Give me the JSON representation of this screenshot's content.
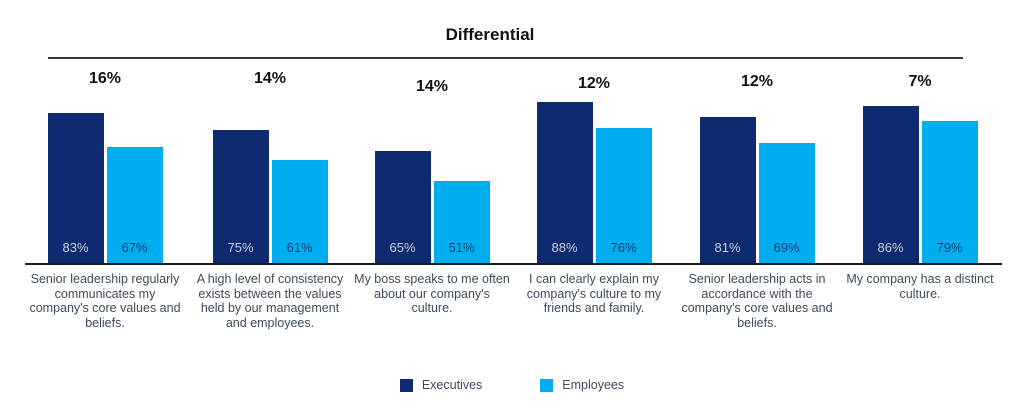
{
  "chart_data": {
    "type": "bar",
    "title": "Differential",
    "categories": [
      "Senior leadership regularly communicates my company's core values and beliefs.",
      "A high level of consistency exists between the values held by our management and employees.",
      "My boss speaks to me often about our company's culture.",
      "I can clearly explain my company's culture to my friends and family.",
      "Senior leadership acts in accordance with the company's core values and beliefs.",
      "My company has a distinct culture."
    ],
    "series": [
      {
        "name": "Executives",
        "values": [
          83,
          75,
          65,
          88,
          81,
          86
        ]
      },
      {
        "name": "Employees",
        "values": [
          67,
          61,
          51,
          76,
          69,
          79
        ]
      }
    ],
    "differentials": [
      "16%",
      "14%",
      "14%",
      "12%",
      "12%",
      "7%"
    ],
    "value_labels": [
      [
        "83%",
        "75%",
        "65%",
        "88%",
        "81%",
        "86%"
      ],
      [
        "67%",
        "61%",
        "51%",
        "76%",
        "69%",
        "79%"
      ]
    ],
    "axes": {
      "y_axis_visible": false,
      "x_axis_line": true,
      "gridlines": false
    },
    "legend_position": "bottom-center"
  },
  "colors": {
    "executives": "#0e2b72",
    "employees": "#00aeef",
    "title_text": "#111111",
    "differential_text": "#111111",
    "value_label_on_executives": "#c9cfd9",
    "value_label_on_employees": "#17366e",
    "category_text": "#3f4a5a",
    "axis_line": "#1a1a1a",
    "rule_line": "#3a3a3a",
    "background": "#ffffff"
  }
}
